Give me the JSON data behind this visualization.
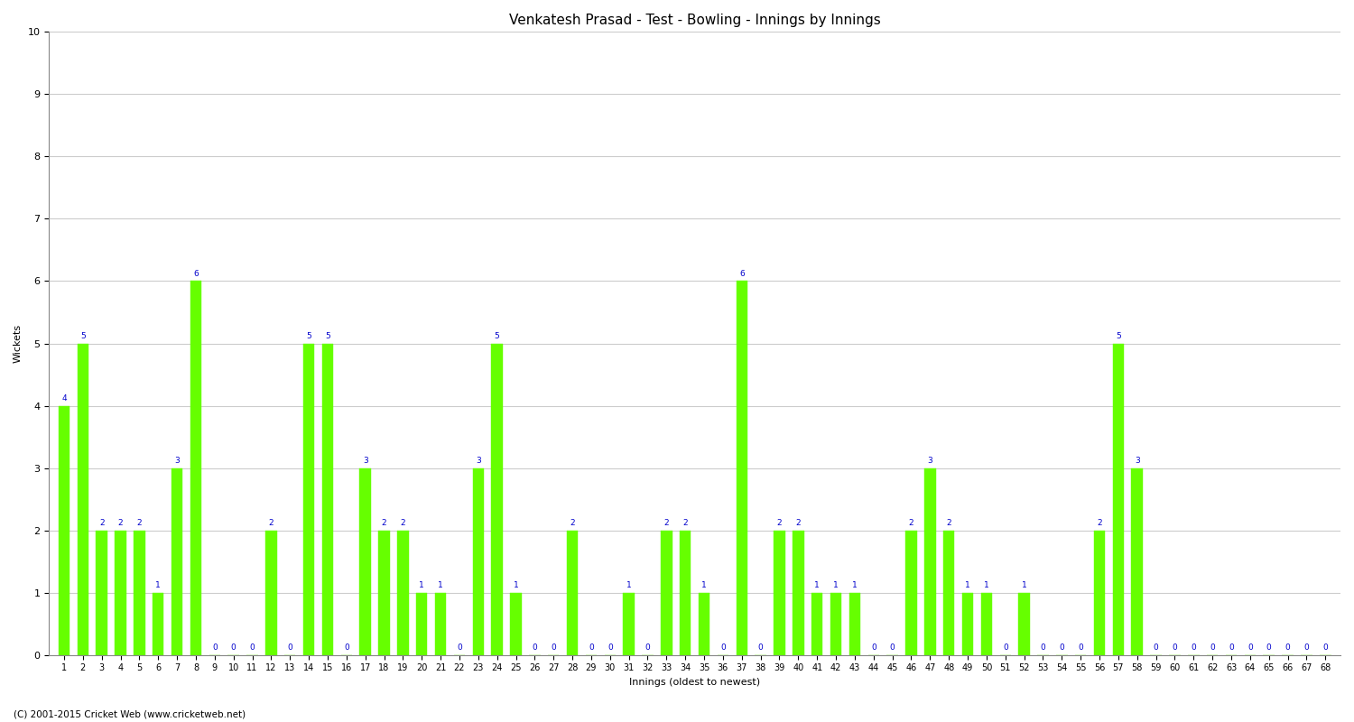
{
  "title": "Venkatesh Prasad - Test - Bowling - Innings by Innings",
  "xlabel": "Innings (oldest to newest)",
  "ylabel": "Wickets",
  "background_color": "#ffffff",
  "bar_color": "#66ff00",
  "label_color": "#0000cc",
  "ylim": [
    0,
    10
  ],
  "yticks": [
    0,
    1,
    2,
    3,
    4,
    5,
    6,
    7,
    8,
    9,
    10
  ],
  "categories": [
    1,
    2,
    3,
    4,
    5,
    6,
    7,
    8,
    9,
    10,
    11,
    12,
    13,
    14,
    15,
    16,
    17,
    18,
    19,
    20,
    21,
    22,
    23,
    24,
    25,
    26,
    27,
    28,
    29,
    30,
    31,
    32,
    33,
    34,
    35,
    36,
    37,
    38,
    39,
    40,
    41,
    42,
    43,
    44,
    45,
    46,
    47,
    48,
    49,
    50,
    51,
    52,
    53,
    54,
    55,
    56,
    57,
    58,
    59,
    60,
    61,
    62,
    63,
    64,
    65,
    66,
    67,
    68
  ],
  "values": [
    4,
    5,
    2,
    2,
    2,
    1,
    3,
    6,
    0,
    0,
    0,
    2,
    0,
    5,
    5,
    0,
    3,
    2,
    2,
    1,
    1,
    0,
    3,
    5,
    1,
    0,
    0,
    2,
    0,
    0,
    1,
    0,
    2,
    2,
    1,
    0,
    6,
    0,
    2,
    2,
    1,
    1,
    1,
    0,
    0,
    2,
    3,
    2,
    1,
    1,
    0,
    1,
    0,
    0,
    0,
    2,
    5,
    3,
    0,
    0,
    0,
    0,
    0,
    0,
    0,
    0,
    0,
    0
  ],
  "footer": "(C) 2001-2015 Cricket Web (www.cricketweb.net)",
  "grid_color": "#cccccc",
  "title_fontsize": 11,
  "label_fontsize": 6.5,
  "axis_label_fontsize": 8,
  "tick_fontsize": 7,
  "bar_width": 0.6
}
